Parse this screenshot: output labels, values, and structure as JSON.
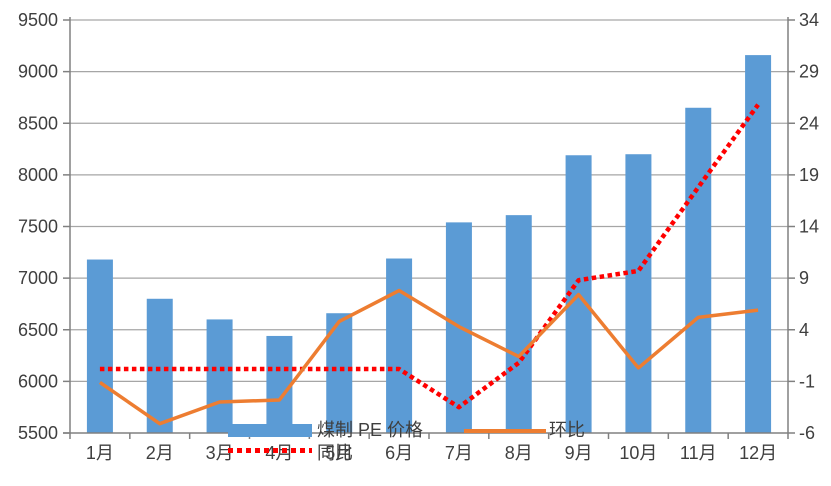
{
  "chart_data": {
    "type": "bar",
    "subtype": "bar-line-combo",
    "title": "",
    "categories": [
      "1月",
      "2月",
      "3月",
      "4月",
      "5月",
      "6月",
      "7月",
      "8月",
      "9月",
      "10月",
      "11月",
      "12月"
    ],
    "series": [
      {
        "name": "煤制 PE 价格",
        "type": "bar",
        "axis": "left",
        "color": "#5B9BD5",
        "line_style": "solid",
        "values": [
          7180,
          6800,
          6600,
          6440,
          6660,
          7190,
          7540,
          7610,
          8190,
          8200,
          8650,
          9160
        ]
      },
      {
        "name": "同比",
        "type": "line",
        "axis": "right",
        "color": "#FF0000",
        "line_style": "dotted",
        "values": [
          0.2,
          0.2,
          0.2,
          0.2,
          0.2,
          0.2,
          -3.5,
          0.8,
          8.8,
          9.7,
          17.8,
          25.8
        ]
      },
      {
        "name": "环比",
        "type": "line",
        "axis": "right",
        "color": "#ED7D31",
        "line_style": "solid",
        "values": [
          -1.1,
          -5.1,
          -3.0,
          -2.8,
          4.8,
          7.8,
          4.3,
          1.4,
          7.4,
          0.3,
          5.2,
          5.9
        ]
      }
    ],
    "y_left": {
      "min": 5500,
      "max": 9500,
      "step": 500,
      "ticks": [
        "5500",
        "6000",
        "6500",
        "7000",
        "7500",
        "8000",
        "8500",
        "9000",
        "9500"
      ]
    },
    "y_right": {
      "min": -6,
      "max": 34,
      "step": 5,
      "ticks": [
        "-6",
        "-1",
        "4",
        "9",
        "14",
        "19",
        "24",
        "29",
        "34"
      ]
    },
    "grid": "horizontal-only",
    "legend_position": "bottom-overlapping-axis"
  },
  "legend": {
    "bar_label": "煤制 PE 价格",
    "yoy_label": "同比",
    "mom_label": "环比"
  },
  "colors": {
    "bar": "#5B9BD5",
    "yoy_line": "#FF0000",
    "mom_line": "#ED7D31",
    "gridline": "#A6A6A6",
    "axis": "#808080",
    "label_text": "#3F3F3F",
    "background": "#FFFFFF"
  }
}
